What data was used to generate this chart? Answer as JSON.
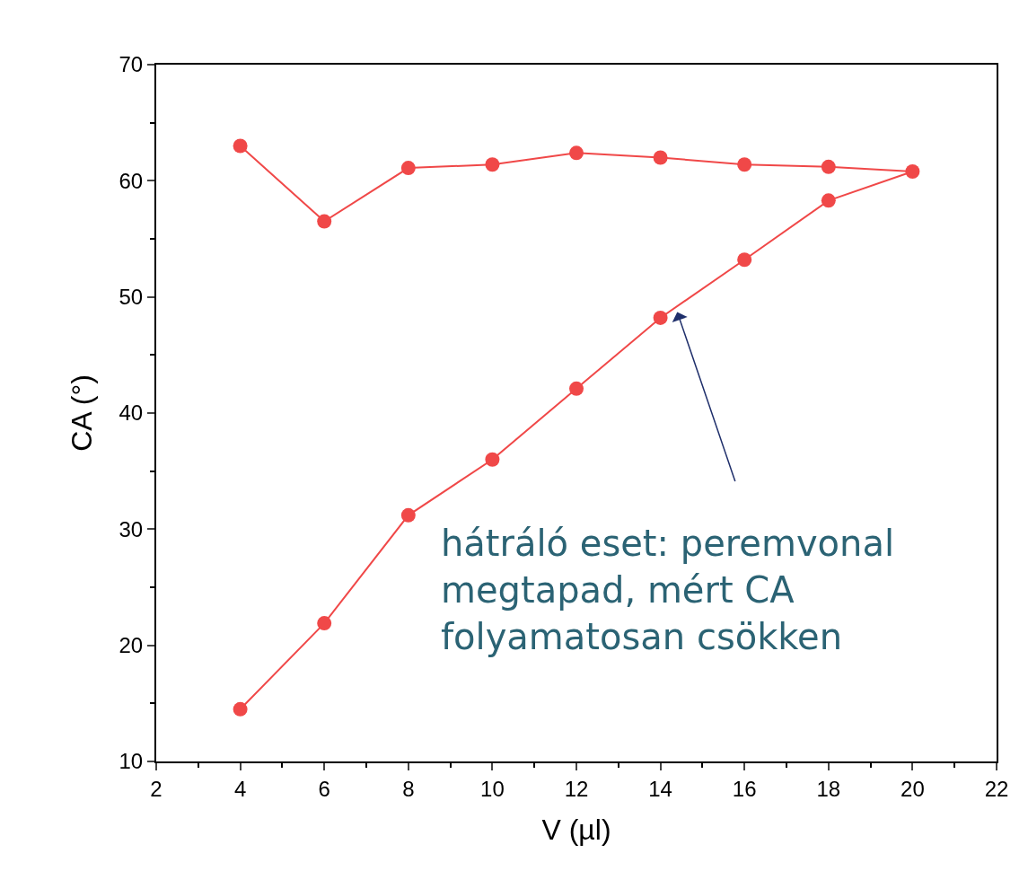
{
  "chart_data": {
    "type": "line",
    "xlabel": "V (µl)",
    "ylabel": "CA (°)",
    "series": [
      {
        "color": "#f04848",
        "x": [
          4,
          6,
          8,
          10,
          12,
          14,
          16,
          18,
          20,
          18,
          16,
          14,
          12,
          10,
          8,
          6,
          4
        ],
        "values": [
          14.5,
          21.9,
          31.2,
          36.0,
          42.1,
          48.2,
          53.2,
          58.3,
          60.8,
          61.2,
          61.4,
          62.0,
          62.4,
          61.4,
          61.1,
          56.5,
          63.0
        ]
      }
    ],
    "xlim": [
      2,
      22
    ],
    "xticks": [
      2,
      4,
      6,
      8,
      10,
      12,
      14,
      16,
      18,
      20,
      22
    ],
    "ylim": [
      10,
      70
    ],
    "yticks": [
      10,
      20,
      30,
      40,
      50,
      60,
      70
    ],
    "marker": "circle",
    "line_style": "solid",
    "annotations": [
      {
        "text": "hátráló eset: peremvonal megtapad, mért CA folyamatosan csökken",
        "x": 14.4,
        "y": 48.7
      }
    ]
  }
}
